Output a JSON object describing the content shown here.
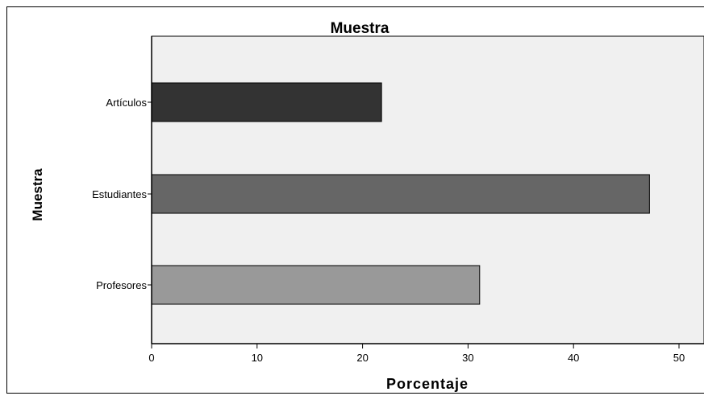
{
  "chart_data": {
    "type": "bar",
    "orientation": "horizontal",
    "title": "Muestra",
    "xlabel": "Porcentaje",
    "ylabel": "Muestra",
    "categories": [
      "Artículos",
      "Estudiantes",
      "Profesores"
    ],
    "values": [
      21.8,
      47.2,
      31.1
    ],
    "bar_colors": [
      "#333333",
      "#666666",
      "#999999"
    ],
    "xlim": [
      0,
      52.5
    ],
    "xticks": [
      0,
      10,
      20,
      30,
      40,
      50
    ],
    "grid": false,
    "legend": "none",
    "plot_background": "#f0f0f0"
  }
}
